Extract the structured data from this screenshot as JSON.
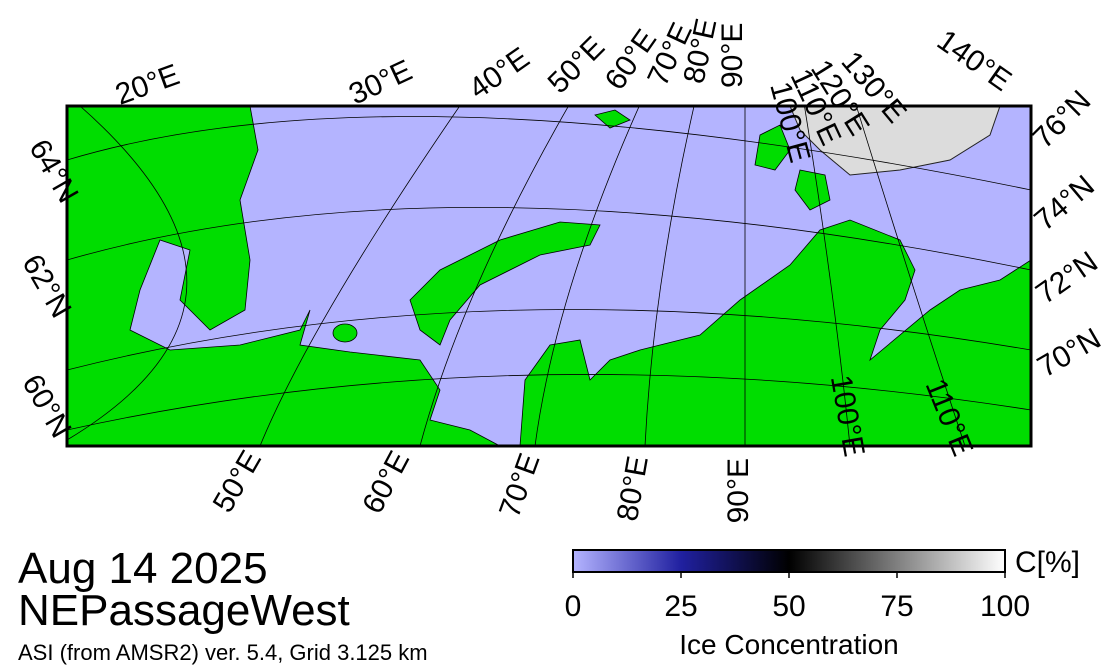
{
  "map": {
    "top_longitudes": [
      "20°E",
      "30°E",
      "40°E",
      "50°E",
      "60°E",
      "70°E",
      "80°E",
      "90°E",
      "100°E",
      "110°E",
      "120°E",
      "130°E",
      "140°E"
    ],
    "bottom_longitudes": [
      "50°E",
      "60°E",
      "70°E",
      "80°E",
      "90°E",
      "100°E",
      "110°E"
    ],
    "left_latitudes": [
      "64°N",
      "62°N",
      "60°N"
    ],
    "right_latitudes": [
      "76°N",
      "74°N",
      "72°N",
      "70°N"
    ]
  },
  "info": {
    "date": "Aug 14 2025",
    "region": "NEPassageWest",
    "source": "ASI (from AMSR2) ver. 5.4,  Grid 3.125 km"
  },
  "colorbar": {
    "unit": "C[%]",
    "label": "Ice Concentration",
    "lim": [
      0,
      100
    ],
    "ticks": [
      0,
      25,
      50,
      75,
      100
    ]
  }
}
